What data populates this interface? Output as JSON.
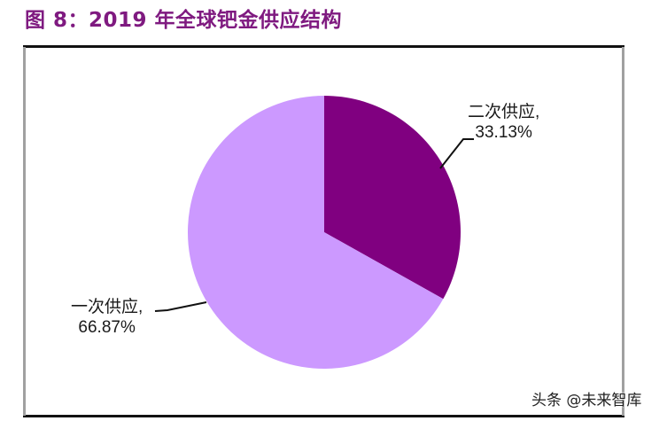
{
  "header": {
    "title": "图 8：2019 年全球钯金供应结构"
  },
  "chart_data": {
    "type": "pie",
    "title": "2019 年全球钯金供应结构",
    "categories": [
      "二次供应",
      "一次供应"
    ],
    "values": [
      33.13,
      66.87
    ],
    "unit": "%",
    "colors": [
      "#800080",
      "#CC99FF"
    ],
    "labels": [
      {
        "name": "二次供应,",
        "value": "33.13%"
      },
      {
        "name": "一次供应,",
        "value": "66.87%"
      }
    ],
    "start_angle_deg": 0,
    "direction": "clockwise",
    "legend": "none"
  },
  "watermark": {
    "text": "头条 @未来智库"
  }
}
